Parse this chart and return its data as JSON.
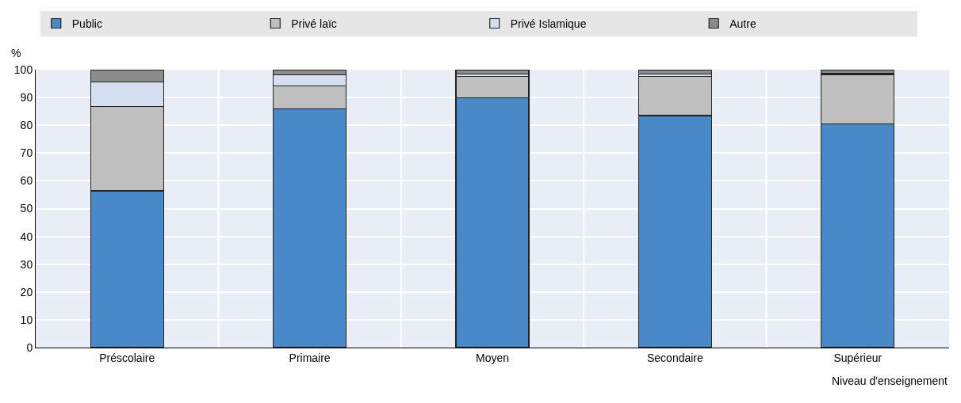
{
  "chart_data": {
    "type": "bar",
    "stacked": true,
    "ylabel": "%",
    "xlabel": "Niveau d'enseignement",
    "categories": [
      "Préscolaire",
      "Primaire",
      "Moyen",
      "Secondaire",
      "Supérieur"
    ],
    "series": [
      {
        "name": "Public",
        "color": "#4a89c8",
        "values": [
          56.4,
          86.0,
          89.9,
          83.5,
          80.5
        ]
      },
      {
        "name": "Privé laïc",
        "color": "#bfbfbf",
        "values": [
          30.4,
          8.2,
          7.6,
          14.0,
          17.8
        ]
      },
      {
        "name": "Privé Islamique",
        "color": "#d6dff0",
        "values": [
          8.8,
          4.0,
          1.0,
          1.0,
          0.3
        ]
      },
      {
        "name": "Autre",
        "color": "#8c8c8c",
        "values": [
          4.4,
          1.8,
          1.5,
          1.5,
          1.4
        ]
      }
    ],
    "ylim": [
      0,
      100
    ],
    "yticks": [
      0,
      10,
      20,
      30,
      40,
      50,
      60,
      70,
      80,
      90,
      100
    ],
    "grid": true,
    "legend": "top"
  }
}
